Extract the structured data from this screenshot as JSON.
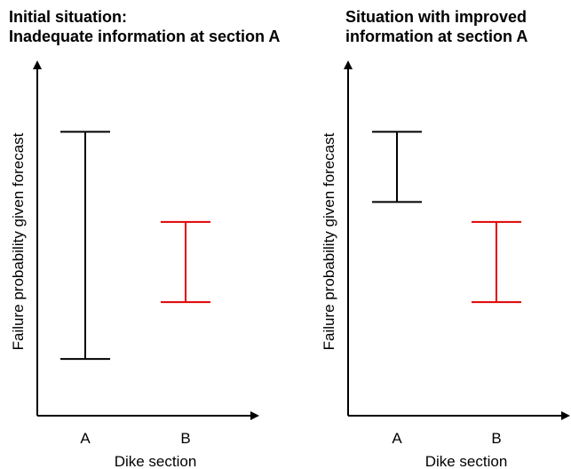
{
  "chart_data": [
    {
      "type": "range",
      "title_lines": [
        "Initial situation:",
        "Inadequate information at section A"
      ],
      "xlabel": "Dike section",
      "ylabel": "Failure probability given forecast",
      "categories": [
        "A",
        "B"
      ],
      "ylim": [
        0,
        100
      ],
      "ranges": [
        {
          "category": "A",
          "low": 17,
          "high": 85,
          "color": "#000000"
        },
        {
          "category": "B",
          "low": 34,
          "high": 58,
          "color": "#e00000"
        }
      ],
      "grid": false,
      "legend": "none"
    },
    {
      "type": "range",
      "title_lines": [
        "Situation with improved",
        "information at section A"
      ],
      "xlabel": "Dike section",
      "ylabel": "Failure probability given forecast",
      "categories": [
        "A",
        "B"
      ],
      "ylim": [
        0,
        100
      ],
      "ranges": [
        {
          "category": "A",
          "low": 64,
          "high": 85,
          "color": "#000000"
        },
        {
          "category": "B",
          "low": 34,
          "high": 58,
          "color": "#e00000"
        }
      ],
      "grid": false,
      "legend": "none"
    }
  ]
}
